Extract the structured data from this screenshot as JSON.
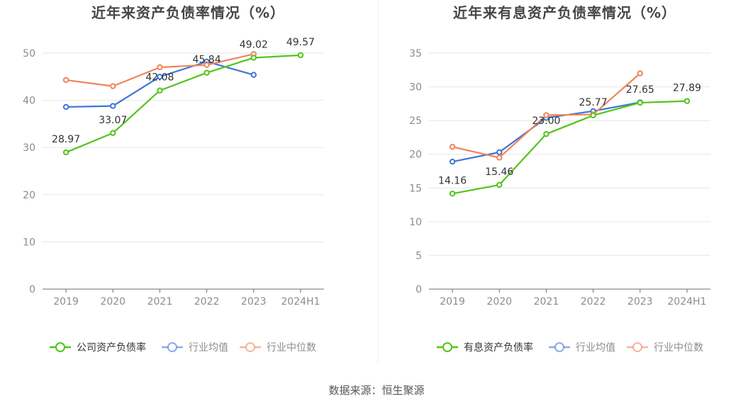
{
  "source": "数据来源：恒生聚源",
  "chart_data": [
    {
      "type": "line",
      "title": "近年来资产负债率情况（%）",
      "categories": [
        "2019",
        "2020",
        "2021",
        "2022",
        "2023",
        "2024H1"
      ],
      "ylim": [
        0,
        55
      ],
      "yticks": [
        0,
        10,
        20,
        30,
        40,
        50
      ],
      "grid": true,
      "legend_position": "bottom",
      "series": [
        {
          "name": "公司资产负债率",
          "color": "#52c41a",
          "labeled": true,
          "values": [
            28.97,
            33.07,
            42.08,
            45.84,
            49.02,
            49.57
          ],
          "labels": [
            "28.97",
            "33.07",
            "42.08",
            "45.84",
            "49.02",
            "49.57"
          ]
        },
        {
          "name": "行业均值",
          "color": "#3f74d6",
          "labeled": false,
          "values": [
            38.6,
            38.8,
            45.0,
            48.2,
            45.4,
            null
          ]
        },
        {
          "name": "行业中位数",
          "color": "#f0845a",
          "labeled": false,
          "values": [
            44.3,
            43.0,
            47.0,
            47.5,
            49.8,
            null
          ]
        }
      ]
    },
    {
      "type": "line",
      "title": "近年来有息资产负债率情况（%）",
      "categories": [
        "2019",
        "2020",
        "2021",
        "2022",
        "2023",
        "2024H1"
      ],
      "ylim": [
        0,
        37
      ],
      "yticks": [
        0,
        5,
        10,
        15,
        20,
        25,
        30,
        35
      ],
      "grid": true,
      "legend_position": "bottom",
      "series": [
        {
          "name": "有息资产负债率",
          "color": "#52c41a",
          "labeled": true,
          "values": [
            14.16,
            15.46,
            23.0,
            25.77,
            27.65,
            27.89
          ],
          "labels": [
            "14.16",
            "15.46",
            "23.00",
            "25.77",
            "27.65",
            "27.89"
          ]
        },
        {
          "name": "行业均值",
          "color": "#3f74d6",
          "labeled": false,
          "values": [
            18.9,
            20.3,
            25.4,
            26.4,
            27.7,
            null
          ]
        },
        {
          "name": "行业中位数",
          "color": "#f0845a",
          "labeled": false,
          "values": [
            21.1,
            19.5,
            25.8,
            25.9,
            32.0,
            null
          ]
        }
      ]
    }
  ]
}
